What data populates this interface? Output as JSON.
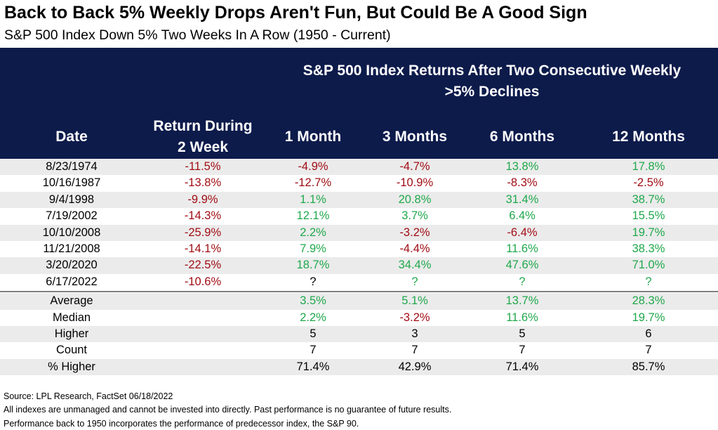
{
  "title": "Back to Back 5% Weekly Drops Aren't Fun, But Could Be A Good Sign",
  "subtitle": "S&P 500 Index Down 5% Two Weeks In A Row (1950 - Current)",
  "header": {
    "group_line1": "S&P 500 Index Returns After Two Consecutive Weekly",
    "group_line2": ">5% Declines",
    "date": "Date",
    "return_line1": "Return During",
    "return_line2": "2 Week",
    "m1": "1 Month",
    "m3": "3 Months",
    "m6": "6 Months",
    "m12": "12 Months"
  },
  "rows": [
    {
      "date": "8/23/1974",
      "ret": "-11.5%",
      "m1": "-4.9%",
      "m3": "-4.7%",
      "m6": "13.8%",
      "m12": "17.8%"
    },
    {
      "date": "10/16/1987",
      "ret": "-13.8%",
      "m1": "-12.7%",
      "m3": "-10.9%",
      "m6": "-8.3%",
      "m12": "-2.5%"
    },
    {
      "date": "9/4/1998",
      "ret": "-9.9%",
      "m1": "1.1%",
      "m3": "20.8%",
      "m6": "31.4%",
      "m12": "38.7%"
    },
    {
      "date": "7/19/2002",
      "ret": "-14.3%",
      "m1": "12.1%",
      "m3": "3.7%",
      "m6": "6.4%",
      "m12": "15.5%"
    },
    {
      "date": "10/10/2008",
      "ret": "-25.9%",
      "m1": "2.2%",
      "m3": "-3.2%",
      "m6": "-6.4%",
      "m12": "19.7%"
    },
    {
      "date": "11/21/2008",
      "ret": "-14.1%",
      "m1": "7.9%",
      "m3": "-4.4%",
      "m6": "11.6%",
      "m12": "38.3%"
    },
    {
      "date": "3/20/2020",
      "ret": "-22.5%",
      "m1": "18.7%",
      "m3": "34.4%",
      "m6": "47.6%",
      "m12": "71.0%"
    },
    {
      "date": "6/17/2022",
      "ret": "-10.6%",
      "m1": "?",
      "m3": "?",
      "m6": "?",
      "m12": "?"
    }
  ],
  "summary": [
    {
      "label": "Average",
      "m1": "3.5%",
      "m3": "5.1%",
      "m6": "13.7%",
      "m12": "28.3%"
    },
    {
      "label": "Median",
      "m1": "2.2%",
      "m3": "-3.2%",
      "m6": "11.6%",
      "m12": "19.7%"
    },
    {
      "label": "Higher",
      "m1": "5",
      "m3": "3",
      "m6": "5",
      "m12": "6"
    },
    {
      "label": "Count",
      "m1": "7",
      "m3": "7",
      "m6": "7",
      "m12": "7"
    },
    {
      "label": "% Higher",
      "m1": "71.4%",
      "m3": "42.9%",
      "m6": "71.4%",
      "m12": "85.7%"
    }
  ],
  "footer": {
    "source": "Source: LPL Research, FactSet 06/18/2022",
    "note1": "All indexes are unmanaged and cannot be invested into directly. Past performance is no guarantee of future results.",
    "note2": "Performance back to 1950 incorporates the performance of predecessor index, the S&P 90."
  },
  "colors": {
    "header_bg": "#0d1b4b",
    "negative": "#a10d14",
    "positive": "#1fa84b",
    "row_shade": "#ebebeb"
  }
}
